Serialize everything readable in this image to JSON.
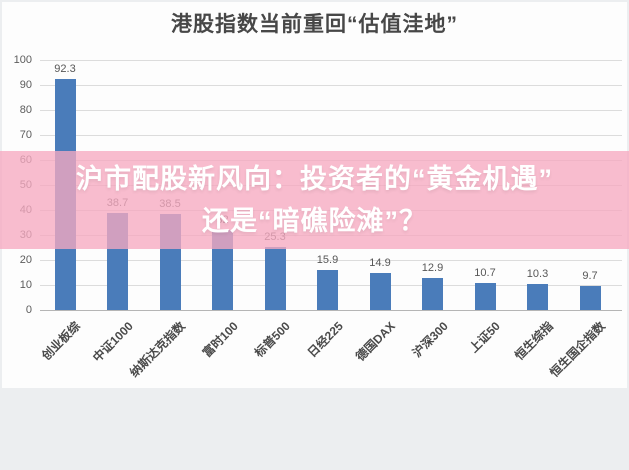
{
  "page": {
    "title": "港股指数当前重回“估值洼地”"
  },
  "overlay": {
    "line1": "沪市配股新风向：投资者的“黄金机遇”",
    "line2": "还是“暗礁险滩”？",
    "band_color": "#f6a9c0",
    "text_color": "#ffffff"
  },
  "chart_data": {
    "type": "bar",
    "title": "港股指数当前重回“估值洼地”",
    "categories": [
      "创业板综",
      "中证1000",
      "纳斯达克指数",
      "富时100",
      "标普500",
      "日经225",
      "德国DAX",
      "沪深300",
      "上证50",
      "恒生综指",
      "恒生国企指数"
    ],
    "values": [
      92.3,
      38.7,
      38.5,
      32,
      25.3,
      15.9,
      14.9,
      12.9,
      10.7,
      10.3,
      9.7
    ],
    "value_labels": [
      "92.3",
      "38.7",
      "38.5",
      "32",
      "25.3",
      "15.9",
      "14.9",
      "12.9",
      "10.7",
      "10.3",
      "9.7"
    ],
    "xlabel": "",
    "ylabel": "",
    "ylim": [
      0,
      100
    ],
    "yticks": [
      0,
      10,
      20,
      30,
      40,
      50,
      60,
      70,
      80,
      90,
      100
    ],
    "grid": true,
    "legend": "none",
    "bar_color": "#4a7cba",
    "grid_color": "#dcdcdc",
    "baseline_color": "#b5b5b5"
  }
}
